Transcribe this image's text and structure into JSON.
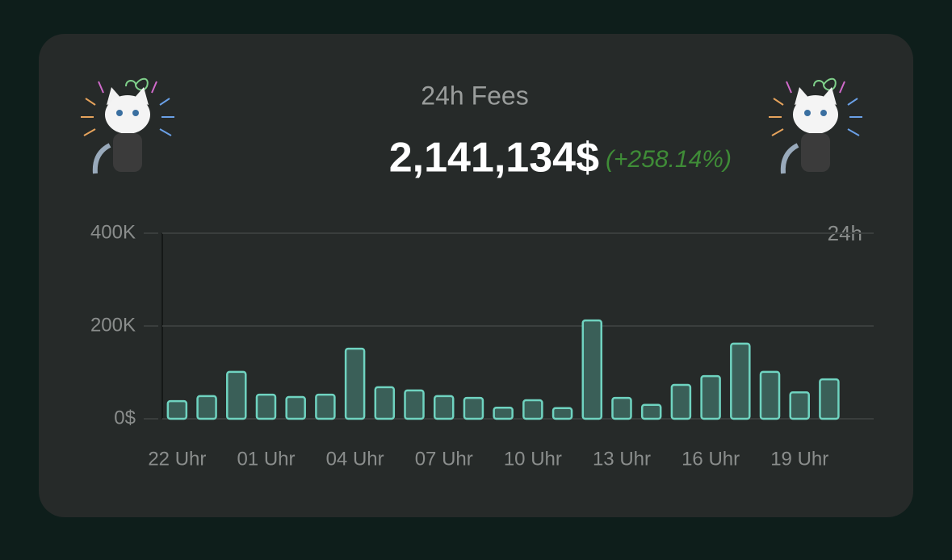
{
  "chart_data": {
    "type": "bar",
    "title": "24h Fees",
    "total": "2,141,134$",
    "change": "(+258.14%)",
    "period_label": "24h",
    "categories": [
      "22 Uhr",
      null,
      null,
      "01 Uhr",
      null,
      null,
      "04 Uhr",
      null,
      null,
      "07 Uhr",
      null,
      null,
      "10 Uhr",
      null,
      null,
      "13 Uhr",
      null,
      null,
      "16 Uhr",
      null,
      null,
      "19 Uhr",
      null,
      null
    ],
    "values": [
      38000,
      49000,
      101000,
      52000,
      47000,
      52000,
      151000,
      68000,
      61000,
      49000,
      45000,
      24000,
      40000,
      23000,
      212000,
      45000,
      30000,
      73000,
      92000,
      162000,
      101000,
      57000,
      85000,
      null
    ],
    "color": "#3a5f58",
    "edge_color": "#6fd3c0",
    "ylim": [
      0,
      400000
    ],
    "yticks": [
      {
        "value": 0,
        "label": "0$"
      },
      {
        "value": 200000,
        "label": "200K"
      },
      {
        "value": 400000,
        "label": "400K"
      }
    ],
    "grid": true
  }
}
